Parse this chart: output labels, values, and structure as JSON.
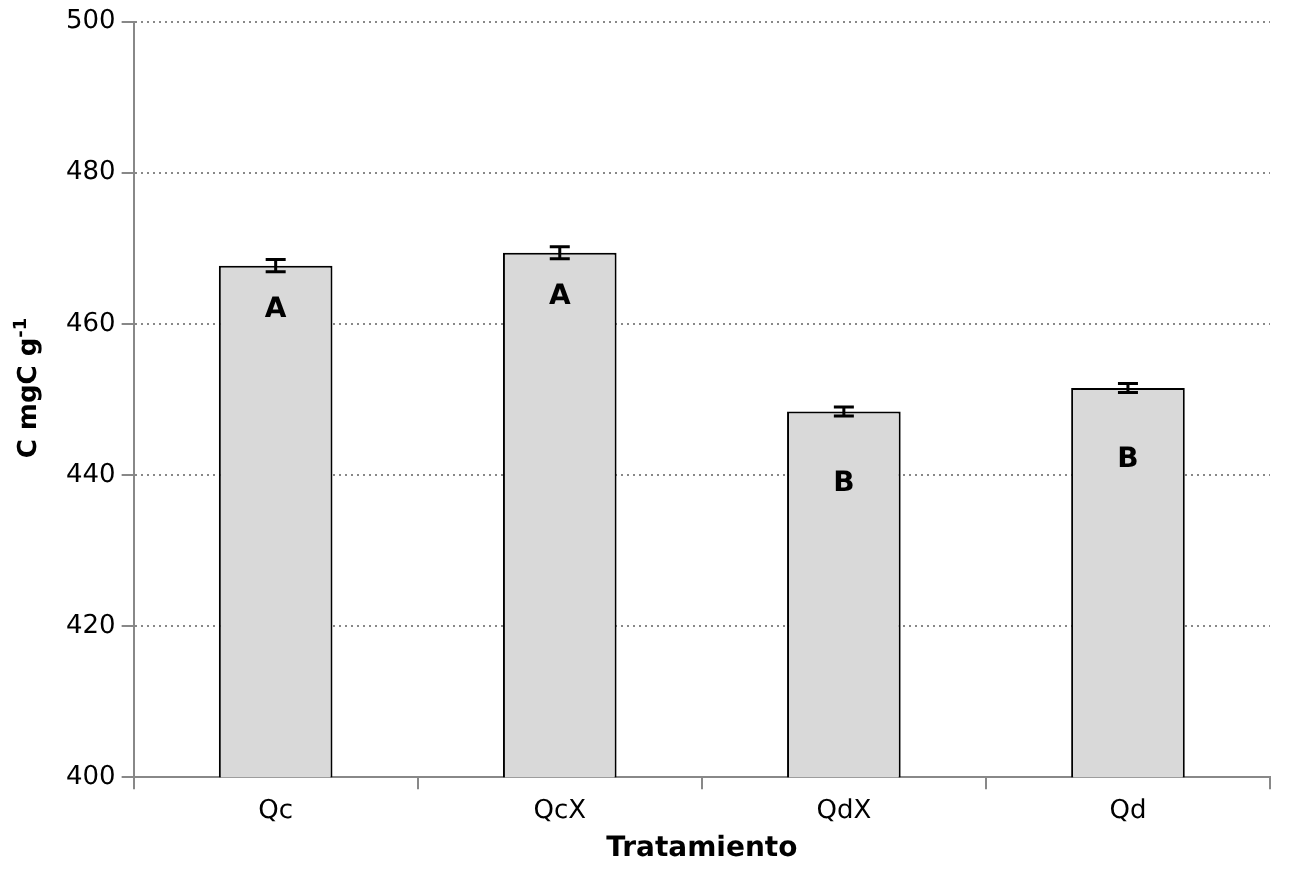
{
  "chart_data": {
    "type": "bar",
    "xlabel": "Tratamiento",
    "ylabel": "C mgC g$^{-1}$",
    "categories": [
      "Qc",
      "QcX",
      "QdX",
      "Qd"
    ],
    "values": [
      467.7,
      469.4,
      448.4,
      451.5
    ],
    "errors": [
      0.8,
      0.8,
      0.6,
      0.6
    ],
    "color": "#d9d9d9",
    "ylim": [
      400,
      500
    ],
    "yticks": [
      400,
      420,
      440,
      460,
      480,
      500
    ],
    "grid": "y",
    "annotations": [
      "A",
      "A",
      "B",
      "B"
    ]
  }
}
